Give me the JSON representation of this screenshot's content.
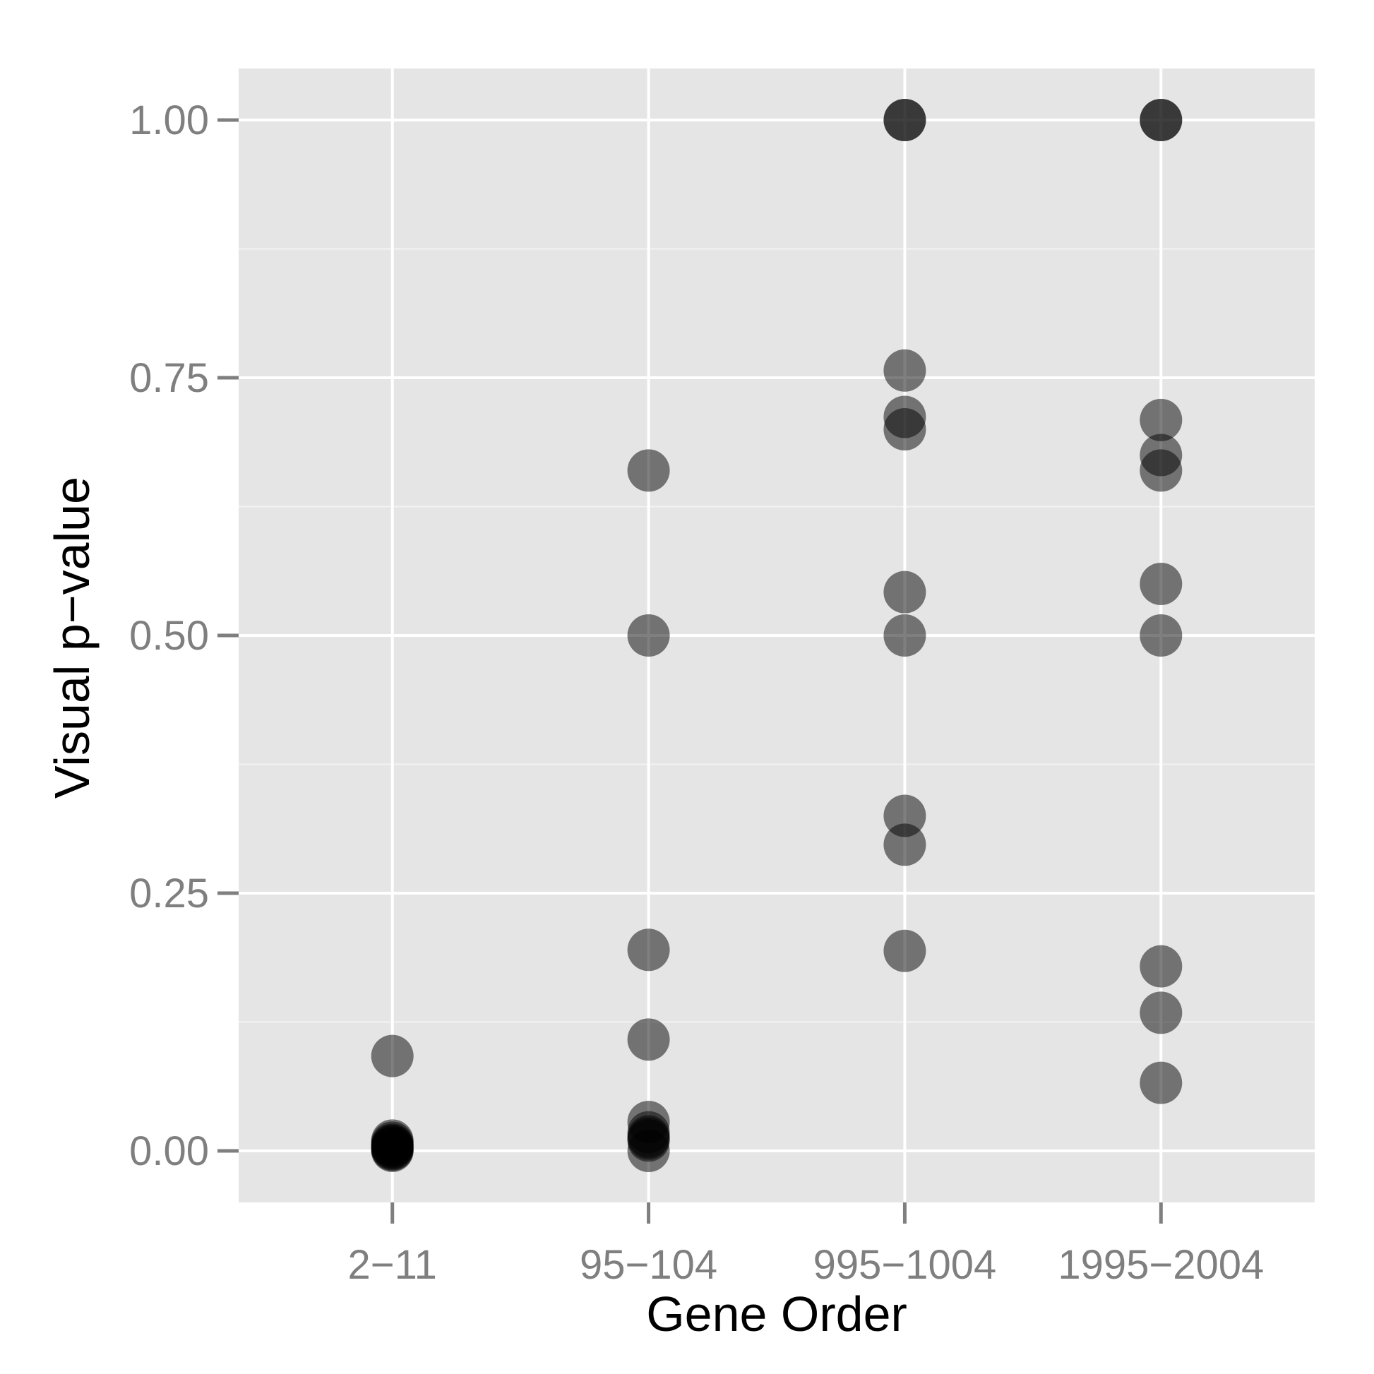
{
  "chart_data": {
    "type": "scatter",
    "xlabel": "Gene Order",
    "ylabel": "Visual p−value",
    "categories": [
      "2−11",
      "95−104",
      "995−1004",
      "1995−2004"
    ],
    "ylim": [
      -0.05,
      1.05
    ],
    "y_ticks": [
      {
        "value": 0.0,
        "label": "0.00"
      },
      {
        "value": 0.25,
        "label": "0.25"
      },
      {
        "value": 0.5,
        "label": "0.50"
      },
      {
        "value": 0.75,
        "label": "0.75"
      },
      {
        "value": 1.0,
        "label": "1.00"
      }
    ],
    "grid": true,
    "colors": {
      "panel_background": "#e5e5e5",
      "grid_major": "#ffffff",
      "grid_minor": "#f2f2f2",
      "point": "#000000",
      "tick_text": "#7f7f7f",
      "axis_title": "#000000"
    },
    "point_alpha": 0.5,
    "points": [
      {
        "category": "2−11",
        "y": 0.092
      },
      {
        "category": "2−11",
        "y": 0.01
      },
      {
        "category": "2−11",
        "y": 0.008
      },
      {
        "category": "2−11",
        "y": 0.006
      },
      {
        "category": "2−11",
        "y": 0.005
      },
      {
        "category": "2−11",
        "y": 0.004
      },
      {
        "category": "2−11",
        "y": 0.003
      },
      {
        "category": "2−11",
        "y": 0.002
      },
      {
        "category": "2−11",
        "y": 0.001
      },
      {
        "category": "2−11",
        "y": 0.0
      },
      {
        "category": "95−104",
        "y": 0.66
      },
      {
        "category": "95−104",
        "y": 0.5
      },
      {
        "category": "95−104",
        "y": 0.195
      },
      {
        "category": "95−104",
        "y": 0.108
      },
      {
        "category": "95−104",
        "y": 0.028
      },
      {
        "category": "95−104",
        "y": 0.018
      },
      {
        "category": "95−104",
        "y": 0.014
      },
      {
        "category": "95−104",
        "y": 0.012
      },
      {
        "category": "95−104",
        "y": 0.01
      },
      {
        "category": "95−104",
        "y": 0.0
      },
      {
        "category": "995−1004",
        "y": 1.0
      },
      {
        "category": "995−1004",
        "y": 1.0
      },
      {
        "category": "995−1004",
        "y": 0.757
      },
      {
        "category": "995−1004",
        "y": 0.712
      },
      {
        "category": "995−1004",
        "y": 0.7
      },
      {
        "category": "995−1004",
        "y": 0.542
      },
      {
        "category": "995−1004",
        "y": 0.5
      },
      {
        "category": "995−1004",
        "y": 0.325
      },
      {
        "category": "995−1004",
        "y": 0.297
      },
      {
        "category": "995−1004",
        "y": 0.194
      },
      {
        "category": "1995−2004",
        "y": 1.0
      },
      {
        "category": "1995−2004",
        "y": 1.0
      },
      {
        "category": "1995−2004",
        "y": 0.709
      },
      {
        "category": "1995−2004",
        "y": 0.675
      },
      {
        "category": "1995−2004",
        "y": 0.66
      },
      {
        "category": "1995−2004",
        "y": 0.55
      },
      {
        "category": "1995−2004",
        "y": 0.5
      },
      {
        "category": "1995−2004",
        "y": 0.179
      },
      {
        "category": "1995−2004",
        "y": 0.134
      },
      {
        "category": "1995−2004",
        "y": 0.066
      }
    ]
  }
}
